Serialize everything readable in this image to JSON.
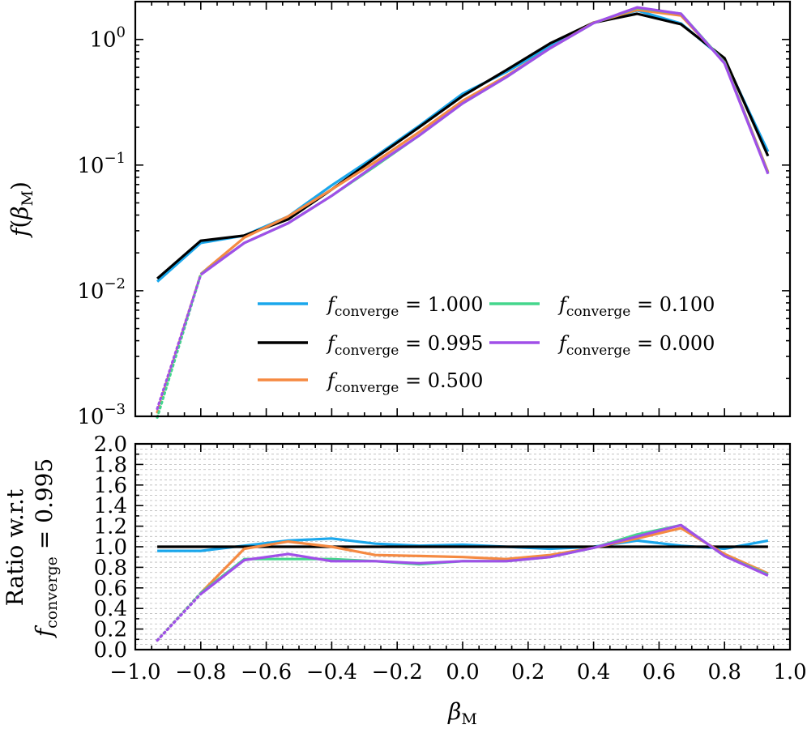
{
  "chart_data": [
    {
      "type": "line",
      "panel": "top",
      "yscale": "log",
      "ylim": [
        0.001,
        2.0
      ],
      "xlim": [
        -1.0,
        1.0
      ],
      "ylabel": "f(β_M)",
      "ylabel_parts": {
        "italic": "f",
        "open": "(",
        "beta": "β",
        "sub": "M",
        "close": ")"
      },
      "yticks": [
        {
          "value": 0.001,
          "base": "10",
          "exp": "−3"
        },
        {
          "value": 0.01,
          "base": "10",
          "exp": "−2"
        },
        {
          "value": 0.1,
          "base": "10",
          "exp": "−1"
        },
        {
          "value": 1.0,
          "base": "10",
          "exp": "0"
        }
      ],
      "x": [
        -0.933,
        -0.8,
        -0.667,
        -0.533,
        -0.4,
        -0.267,
        -0.133,
        0.0,
        0.133,
        0.267,
        0.4,
        0.533,
        0.667,
        0.8,
        0.933
      ],
      "series": [
        {
          "name": "f_converge = 1.000",
          "color": "#1aa7ec",
          "solid_from": 0,
          "values": [
            0.0118,
            0.024,
            0.0275,
            0.039,
            0.069,
            0.117,
            0.205,
            0.37,
            0.55,
            0.88,
            1.36,
            1.7,
            1.34,
            0.69,
            0.128
          ]
        },
        {
          "name": "f_converge = 0.995",
          "color": "#000000",
          "solid_from": 0,
          "values": [
            0.0125,
            0.025,
            0.0275,
            0.037,
            0.064,
            0.114,
            0.2,
            0.355,
            0.57,
            0.93,
            1.36,
            1.6,
            1.32,
            0.71,
            0.118
          ]
        },
        {
          "name": "f_converge = 0.500",
          "color": "#f58a42",
          "solid_from": 1,
          "values": [
            0.00108,
            0.0136,
            0.0265,
            0.039,
            0.064,
            0.106,
            0.183,
            0.325,
            0.51,
            0.85,
            1.36,
            1.72,
            1.55,
            0.66,
            0.088
          ]
        },
        {
          "name": "f_converge = 0.100",
          "color": "#44d68c",
          "solid_from": 1,
          "values": [
            0.00098,
            0.0135,
            0.024,
            0.0345,
            0.057,
            0.098,
            0.172,
            0.31,
            0.5,
            0.85,
            1.35,
            1.78,
            1.6,
            0.655,
            0.086
          ]
        },
        {
          "name": "f_converge = 0.000",
          "color": "#a04fe8",
          "solid_from": 1,
          "values": [
            0.00115,
            0.0134,
            0.024,
            0.0345,
            0.057,
            0.1,
            0.172,
            0.31,
            0.5,
            0.85,
            1.35,
            1.8,
            1.6,
            0.645,
            0.085
          ]
        }
      ],
      "legend": {
        "position": "lower-right",
        "columns": 2,
        "entries": [
          {
            "f": "f",
            "sub": "converge",
            "value": " = 1.000",
            "color": "#1aa7ec"
          },
          {
            "f": "f",
            "sub": "converge",
            "value": " = 0.995",
            "color": "#000000"
          },
          {
            "f": "f",
            "sub": "converge",
            "value": " = 0.500",
            "color": "#f58a42"
          },
          {
            "f": "f",
            "sub": "converge",
            "value": " = 0.100",
            "color": "#44d68c"
          },
          {
            "f": "f",
            "sub": "converge",
            "value": " = 0.000",
            "color": "#a04fe8"
          }
        ]
      }
    },
    {
      "type": "line",
      "panel": "bottom",
      "yscale": "linear",
      "ylim": [
        0.0,
        2.0
      ],
      "xlim": [
        -1.0,
        1.0
      ],
      "grid": true,
      "xlabel": "β_M",
      "xlabel_parts": {
        "beta": "β",
        "sub": "M"
      },
      "ylabel_line1": "Ratio w.r.t",
      "ylabel_line2": {
        "f": "f",
        "sub": "converge",
        "value": " = 0.995"
      },
      "yticks": [
        "0.0",
        "0.2",
        "0.4",
        "0.6",
        "0.8",
        "1.0",
        "1.2",
        "1.4",
        "1.6",
        "1.8",
        "2.0"
      ],
      "xticks": [
        "−1.0",
        "−0.8",
        "−0.6",
        "−0.4",
        "−0.2",
        "0.0",
        "0.2",
        "0.4",
        "0.6",
        "0.8",
        "1.0"
      ],
      "x": [
        -0.933,
        -0.8,
        -0.667,
        -0.533,
        -0.4,
        -0.267,
        -0.133,
        0.0,
        0.133,
        0.267,
        0.4,
        0.533,
        0.667,
        0.8,
        0.933
      ],
      "series": [
        {
          "name": "f_converge = 1.000",
          "color": "#1aa7ec",
          "solid_from": 0,
          "values": [
            0.96,
            0.96,
            1.01,
            1.06,
            1.08,
            1.03,
            1.01,
            1.02,
            1.0,
            0.98,
            1.0,
            1.06,
            1.01,
            0.98,
            1.06
          ]
        },
        {
          "name": "f_converge = 0.995",
          "color": "#000000",
          "solid_from": 0,
          "values": [
            1.0,
            1.0,
            1.0,
            1.0,
            1.0,
            1.0,
            1.0,
            1.0,
            1.0,
            1.0,
            1.0,
            1.0,
            1.0,
            1.0,
            1.0
          ]
        },
        {
          "name": "f_converge = 0.500",
          "color": "#f58a42",
          "solid_from": 1,
          "values": [
            0.09,
            0.55,
            0.98,
            1.05,
            1.0,
            0.92,
            0.91,
            0.9,
            0.88,
            0.92,
            0.99,
            1.08,
            1.18,
            0.93,
            0.74
          ]
        },
        {
          "name": "f_converge = 0.100",
          "color": "#44d68c",
          "solid_from": 1,
          "values": [
            0.09,
            0.55,
            0.88,
            0.88,
            0.88,
            0.86,
            0.83,
            0.86,
            0.86,
            0.9,
            0.99,
            1.12,
            1.21,
            0.91,
            0.73
          ]
        },
        {
          "name": "f_converge = 0.000",
          "color": "#a04fe8",
          "solid_from": 1,
          "values": [
            0.09,
            0.54,
            0.87,
            0.93,
            0.86,
            0.86,
            0.84,
            0.86,
            0.86,
            0.9,
            0.99,
            1.1,
            1.21,
            0.91,
            0.72
          ]
        }
      ]
    }
  ]
}
